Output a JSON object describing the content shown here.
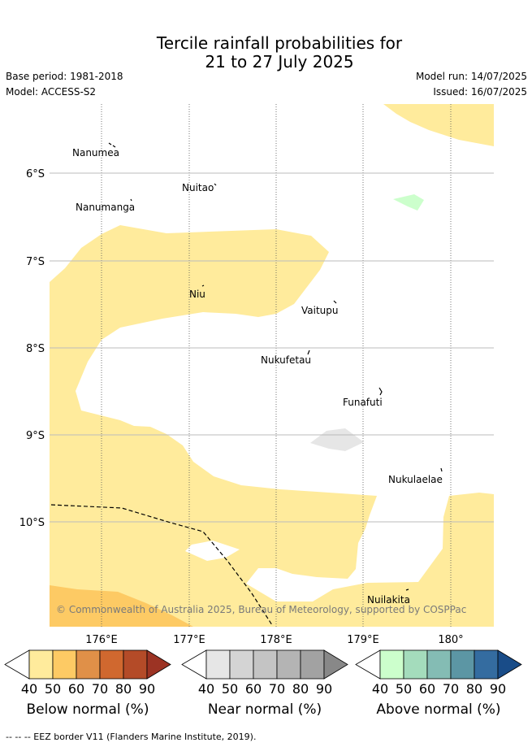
{
  "title": {
    "line1": "Tercile rainfall probabilities for",
    "line2": "21 to 27 July 2025"
  },
  "meta": {
    "base_period": "Base period: 1981-2018",
    "model": "Model: ACCESS-S2",
    "model_run": "Model run: 14/07/2025",
    "issued": "Issued: 16/07/2025"
  },
  "map": {
    "lon_ticks": [
      "176°E",
      "177°E",
      "178°E",
      "179°E",
      "180°"
    ],
    "lat_ticks": [
      "6°S",
      "7°S",
      "8°S",
      "9°S",
      "10°S"
    ],
    "places": [
      "Nanumea",
      "Nuitao",
      "Nanumanga",
      "Niu",
      "Vaitupu",
      "Nukufetau",
      "Funafuti",
      "Nukulaelae",
      "Nuilakita"
    ],
    "copyright": "© Commonwealth of Australia 2025, Bureau of Meteorology, supported by COSPPac",
    "colors": {
      "below_50": "#ffeb9c",
      "below_60": "#fdca64",
      "near_50": "#e6e6e6",
      "above_50": "#ccffcc"
    }
  },
  "colorbars": [
    {
      "label": "Below normal (%)",
      "ticks": [
        "40",
        "50",
        "60",
        "70",
        "80",
        "90"
      ],
      "colors": [
        "#ffffff",
        "#ffeb9c",
        "#fdca64",
        "#e09048",
        "#d0682f",
        "#b44b28",
        "#9c3324"
      ]
    },
    {
      "label": "Near normal (%)",
      "ticks": [
        "40",
        "50",
        "60",
        "70",
        "80",
        "90"
      ],
      "colors": [
        "#ffffff",
        "#e6e6e6",
        "#d4d4d4",
        "#c4c4c4",
        "#b4b4b4",
        "#a2a2a2",
        "#888888"
      ]
    },
    {
      "label": "Above normal (%)",
      "ticks": [
        "40",
        "50",
        "60",
        "70",
        "80",
        "90"
      ],
      "colors": [
        "#ffffff",
        "#ccffcc",
        "#a4dcbc",
        "#84bcb4",
        "#5c96a4",
        "#346ca0",
        "#194c88"
      ]
    }
  ],
  "footnote": "-- -- -- EEZ border V11 (Flanders Marine Institute, 2019)."
}
